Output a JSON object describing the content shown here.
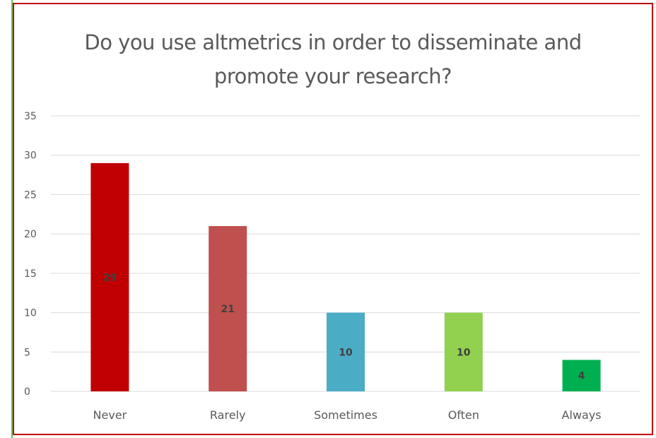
{
  "chart_data": {
    "type": "bar",
    "title": "Do you use altmetrics in order to disseminate and promote your research?",
    "title_lines": [
      "Do you use altmetrics in order to disseminate and",
      "promote your research?"
    ],
    "categories": [
      "Never",
      "Rarely",
      "Sometimes",
      "Often",
      "Always"
    ],
    "values": [
      29,
      21,
      10,
      10,
      4
    ],
    "data_labels": [
      "29",
      "21",
      "10",
      "10",
      "4"
    ],
    "colors": [
      "#c00000",
      "#c0504d",
      "#4bacc6",
      "#92d050",
      "#00b050"
    ],
    "xlabel": "",
    "ylabel": "",
    "ylim": [
      0,
      35
    ],
    "yticks": [
      0,
      5,
      10,
      15,
      20,
      25,
      30,
      35
    ],
    "grid": true,
    "legend": "none"
  },
  "colors": {
    "frame_border": "#c00000",
    "left_accent": "#5cc85c",
    "gridline": "#d9d9d9",
    "text": "#595959"
  }
}
